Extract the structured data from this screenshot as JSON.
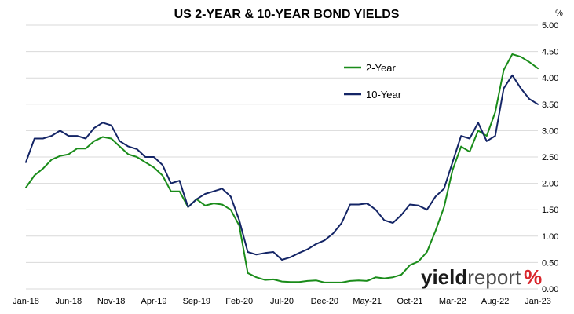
{
  "chart_data": {
    "type": "line",
    "title": "US 2-YEAR & 10-YEAR BOND YIELDS",
    "y_unit": "%",
    "ylim": [
      0,
      5
    ],
    "y_ticks": [
      "0.00",
      "0.50",
      "1.00",
      "1.50",
      "2.00",
      "2.50",
      "3.00",
      "3.50",
      "4.00",
      "4.50",
      "5.00"
    ],
    "x_ticks": [
      "Jan-18",
      "Jun-18",
      "Nov-18",
      "Apr-19",
      "Sep-19",
      "Feb-20",
      "Jul-20",
      "Dec-20",
      "May-21",
      "Oct-21",
      "Mar-22",
      "Aug-22",
      "Jan-23"
    ],
    "grid": "horizontal-only",
    "legend_position": "upper-right-inside",
    "series": [
      {
        "name": "2-Year",
        "color": "#1a8c1a",
        "x": [
          "2018-01",
          "2018-02",
          "2018-03",
          "2018-04",
          "2018-05",
          "2018-06",
          "2018-07",
          "2018-08",
          "2018-09",
          "2018-10",
          "2018-11",
          "2018-12",
          "2019-01",
          "2019-02",
          "2019-03",
          "2019-04",
          "2019-05",
          "2019-06",
          "2019-07",
          "2019-08",
          "2019-09",
          "2019-10",
          "2019-11",
          "2019-12",
          "2020-01",
          "2020-02",
          "2020-03",
          "2020-04",
          "2020-05",
          "2020-06",
          "2020-07",
          "2020-08",
          "2020-09",
          "2020-10",
          "2020-11",
          "2020-12",
          "2021-01",
          "2021-02",
          "2021-03",
          "2021-04",
          "2021-05",
          "2021-06",
          "2021-07",
          "2021-08",
          "2021-09",
          "2021-10",
          "2021-11",
          "2021-12",
          "2022-01",
          "2022-02",
          "2022-03",
          "2022-04",
          "2022-05",
          "2022-06",
          "2022-07",
          "2022-08",
          "2022-09",
          "2022-10",
          "2022-11",
          "2022-12",
          "2023-01"
        ],
        "values": [
          1.92,
          2.15,
          2.28,
          2.45,
          2.52,
          2.55,
          2.66,
          2.66,
          2.8,
          2.88,
          2.85,
          2.7,
          2.55,
          2.5,
          2.4,
          2.3,
          2.15,
          1.85,
          1.85,
          1.55,
          1.7,
          1.58,
          1.62,
          1.6,
          1.5,
          1.2,
          0.3,
          0.22,
          0.17,
          0.18,
          0.14,
          0.13,
          0.13,
          0.15,
          0.16,
          0.12,
          0.12,
          0.12,
          0.15,
          0.16,
          0.15,
          0.22,
          0.2,
          0.22,
          0.27,
          0.45,
          0.52,
          0.7,
          1.1,
          1.55,
          2.25,
          2.7,
          2.6,
          3.0,
          2.9,
          3.35,
          4.15,
          4.45,
          4.4,
          4.3,
          4.18
        ]
      },
      {
        "name": "10-Year",
        "color": "#142566",
        "x": [
          "2018-01",
          "2018-02",
          "2018-03",
          "2018-04",
          "2018-05",
          "2018-06",
          "2018-07",
          "2018-08",
          "2018-09",
          "2018-10",
          "2018-11",
          "2018-12",
          "2019-01",
          "2019-02",
          "2019-03",
          "2019-04",
          "2019-05",
          "2019-06",
          "2019-07",
          "2019-08",
          "2019-09",
          "2019-10",
          "2019-11",
          "2019-12",
          "2020-01",
          "2020-02",
          "2020-03",
          "2020-04",
          "2020-05",
          "2020-06",
          "2020-07",
          "2020-08",
          "2020-09",
          "2020-10",
          "2020-11",
          "2020-12",
          "2021-01",
          "2021-02",
          "2021-03",
          "2021-04",
          "2021-05",
          "2021-06",
          "2021-07",
          "2021-08",
          "2021-09",
          "2021-10",
          "2021-11",
          "2021-12",
          "2022-01",
          "2022-02",
          "2022-03",
          "2022-04",
          "2022-05",
          "2022-06",
          "2022-07",
          "2022-08",
          "2022-09",
          "2022-10",
          "2022-11",
          "2022-12",
          "2023-01"
        ],
        "values": [
          2.4,
          2.85,
          2.85,
          2.9,
          3.0,
          2.9,
          2.9,
          2.85,
          3.05,
          3.15,
          3.1,
          2.8,
          2.7,
          2.65,
          2.5,
          2.5,
          2.35,
          2.0,
          2.05,
          1.55,
          1.7,
          1.8,
          1.85,
          1.9,
          1.75,
          1.3,
          0.7,
          0.65,
          0.68,
          0.7,
          0.55,
          0.6,
          0.68,
          0.75,
          0.85,
          0.92,
          1.05,
          1.25,
          1.6,
          1.6,
          1.62,
          1.5,
          1.3,
          1.25,
          1.4,
          1.6,
          1.58,
          1.5,
          1.75,
          1.9,
          2.4,
          2.9,
          2.85,
          3.15,
          2.8,
          2.9,
          3.8,
          4.05,
          3.8,
          3.6,
          3.5
        ]
      }
    ]
  },
  "legend": {
    "items": [
      {
        "label": "2-Year",
        "color": "#1a8c1a"
      },
      {
        "label": "10-Year",
        "color": "#142566"
      }
    ]
  },
  "branding": {
    "logo_name": "yieldreport-logo",
    "text_a": "yield",
    "text_b": "report",
    "text_c": "%"
  }
}
